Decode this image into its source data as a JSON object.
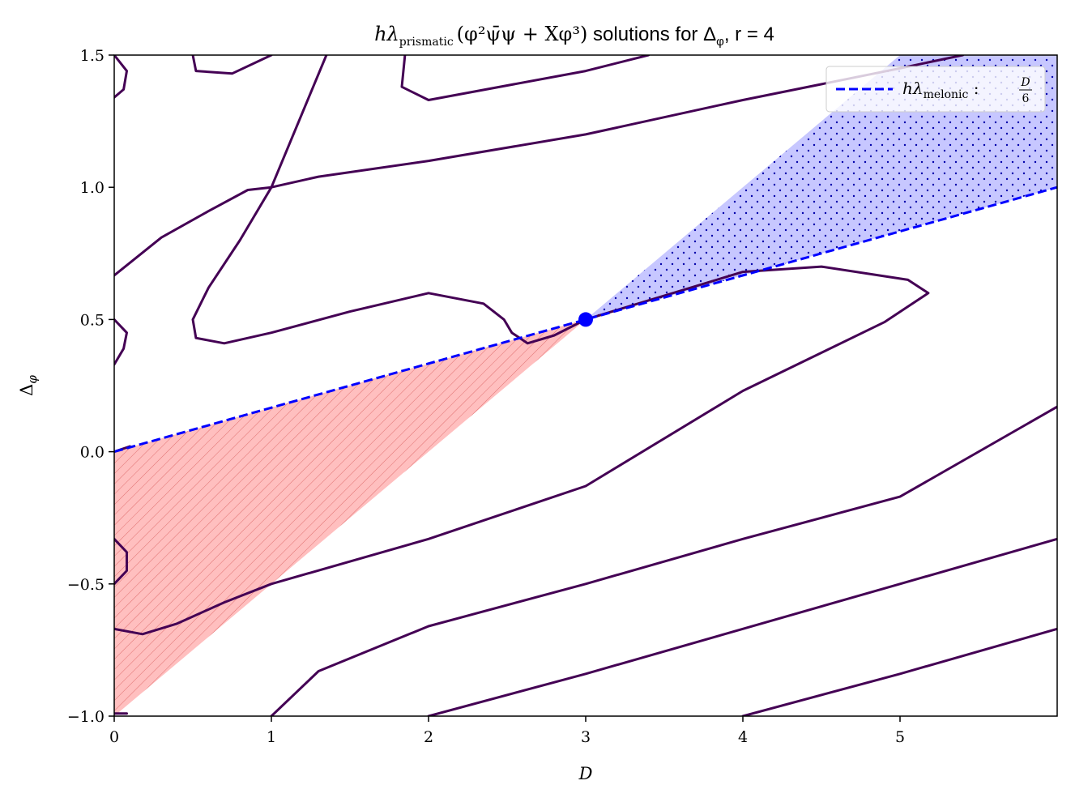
{
  "chart_data": {
    "type": "line",
    "title": {
      "main": "hλ",
      "sub": "prismatic",
      "formula": "(φ²ψ̄ψ + Xφ³)",
      "rest": " solutions for Δ",
      "rest_sub": "φ",
      "tail": ", r = 4"
    },
    "xlabel": "D",
    "ylabel": "Δ",
    "ylabel_sub": "φ",
    "xlim": [
      0,
      6
    ],
    "ylim": [
      -1.0,
      1.5
    ],
    "xticks": [
      0,
      1,
      2,
      3,
      4,
      5
    ],
    "xtick_labels": [
      "0",
      "1",
      "2",
      "3",
      "4",
      "5"
    ],
    "yticks": [
      -1.0,
      -0.5,
      0.0,
      0.5,
      1.0,
      1.5
    ],
    "ytick_labels": [
      "−1.0",
      "−0.5",
      "0.0",
      "0.5",
      "1.0",
      "1.5"
    ],
    "grid": false,
    "legend": {
      "placement": "upper right",
      "entries": [
        {
          "main": "hλ",
          "sub": "melonic",
          "sep": " : ",
          "frac_num": "D",
          "frac_den": "6"
        }
      ]
    },
    "colors": {
      "contour": "#440154",
      "melonic": "#0000ff",
      "red_fill": "#ff0000",
      "blue_fill": "#0000ff"
    },
    "melonic_line": {
      "x": [
        0,
        6
      ],
      "y": [
        0,
        1.0
      ],
      "style": "dashed"
    },
    "marker_point": {
      "x": 3.0,
      "y": 0.5
    },
    "shaded_regions": [
      {
        "name": "red-hatched",
        "vertices": [
          [
            0,
            -1.0
          ],
          [
            0,
            0
          ],
          [
            3.0,
            0.5
          ]
        ],
        "hatch": "diagonal lines"
      },
      {
        "name": "blue-dotted",
        "vertices": [
          [
            3.0,
            0.5
          ],
          [
            5.0,
            1.5
          ],
          [
            6.0,
            1.5
          ],
          [
            6.0,
            1.0
          ]
        ],
        "hatch": "dots"
      }
    ],
    "contours": [
      [
        [
          0.0,
          0.667
        ],
        [
          0.3,
          0.81
        ],
        [
          0.6,
          0.91
        ],
        [
          0.85,
          0.99
        ],
        [
          1.0,
          1.0
        ],
        [
          1.3,
          1.04
        ],
        [
          2.0,
          1.1
        ],
        [
          3.0,
          1.2
        ],
        [
          4.0,
          1.33
        ],
        [
          5.0,
          1.45
        ],
        [
          5.4,
          1.5
        ]
      ],
      [
        [
          0.5,
          1.5
        ],
        [
          0.52,
          1.44
        ],
        [
          0.75,
          1.43
        ],
        [
          1.0,
          1.5
        ]
      ],
      [
        [
          1.85,
          1.5
        ],
        [
          1.83,
          1.38
        ],
        [
          2.0,
          1.33
        ],
        [
          3.0,
          1.44
        ],
        [
          3.4,
          1.5
        ]
      ],
      [
        [
          1.35,
          1.5
        ],
        [
          1.0,
          1.0
        ],
        [
          0.8,
          0.8
        ],
        [
          0.6,
          0.62
        ],
        [
          0.5,
          0.5
        ],
        [
          0.52,
          0.43
        ],
        [
          0.7,
          0.41
        ],
        [
          1.0,
          0.45
        ],
        [
          1.5,
          0.53
        ],
        [
          2.0,
          0.6
        ],
        [
          2.35,
          0.56
        ],
        [
          2.48,
          0.5
        ],
        [
          2.53,
          0.45
        ],
        [
          2.63,
          0.41
        ],
        [
          2.8,
          0.44
        ],
        [
          3.0,
          0.5
        ],
        [
          4.0,
          0.68
        ],
        [
          4.5,
          0.7
        ],
        [
          5.05,
          0.65
        ],
        [
          5.18,
          0.6
        ],
        [
          4.9,
          0.49
        ],
        [
          4.0,
          0.23
        ],
        [
          3.0,
          -0.13
        ],
        [
          2.0,
          -0.33
        ],
        [
          1.0,
          -0.5
        ],
        [
          0.7,
          -0.57
        ],
        [
          0.4,
          -0.65
        ],
        [
          0.18,
          -0.69
        ],
        [
          0.0,
          -0.67
        ]
      ],
      [
        [
          1.0,
          -1.0
        ],
        [
          1.3,
          -0.83
        ],
        [
          2.0,
          -0.66
        ],
        [
          3.0,
          -0.5
        ],
        [
          4.0,
          -0.33
        ],
        [
          5.0,
          -0.17
        ],
        [
          6.0,
          0.17
        ]
      ],
      [
        [
          2.0,
          -1.0
        ],
        [
          3.0,
          -0.84
        ],
        [
          4.0,
          -0.67
        ],
        [
          5.0,
          -0.5
        ],
        [
          6.0,
          -0.33
        ]
      ],
      [
        [
          4.0,
          -1.0
        ],
        [
          5.0,
          -0.84
        ],
        [
          6.0,
          -0.67
        ]
      ],
      [
        [
          0.0,
          1.5
        ],
        [
          0.08,
          1.44
        ],
        [
          0.06,
          1.37
        ],
        [
          0.0,
          1.34
        ]
      ],
      [
        [
          0.0,
          0.5
        ],
        [
          0.08,
          0.45
        ],
        [
          0.06,
          0.39
        ],
        [
          0.0,
          0.33
        ]
      ],
      [
        [
          0.0,
          -0.33
        ],
        [
          0.08,
          -0.38
        ],
        [
          0.08,
          -0.45
        ],
        [
          0.0,
          -0.5
        ]
      ],
      [
        [
          0.0,
          0.0
        ],
        [
          0.1,
          0.02
        ]
      ],
      [
        [
          0.0,
          -0.99
        ],
        [
          0.08,
          -0.99
        ]
      ]
    ]
  }
}
